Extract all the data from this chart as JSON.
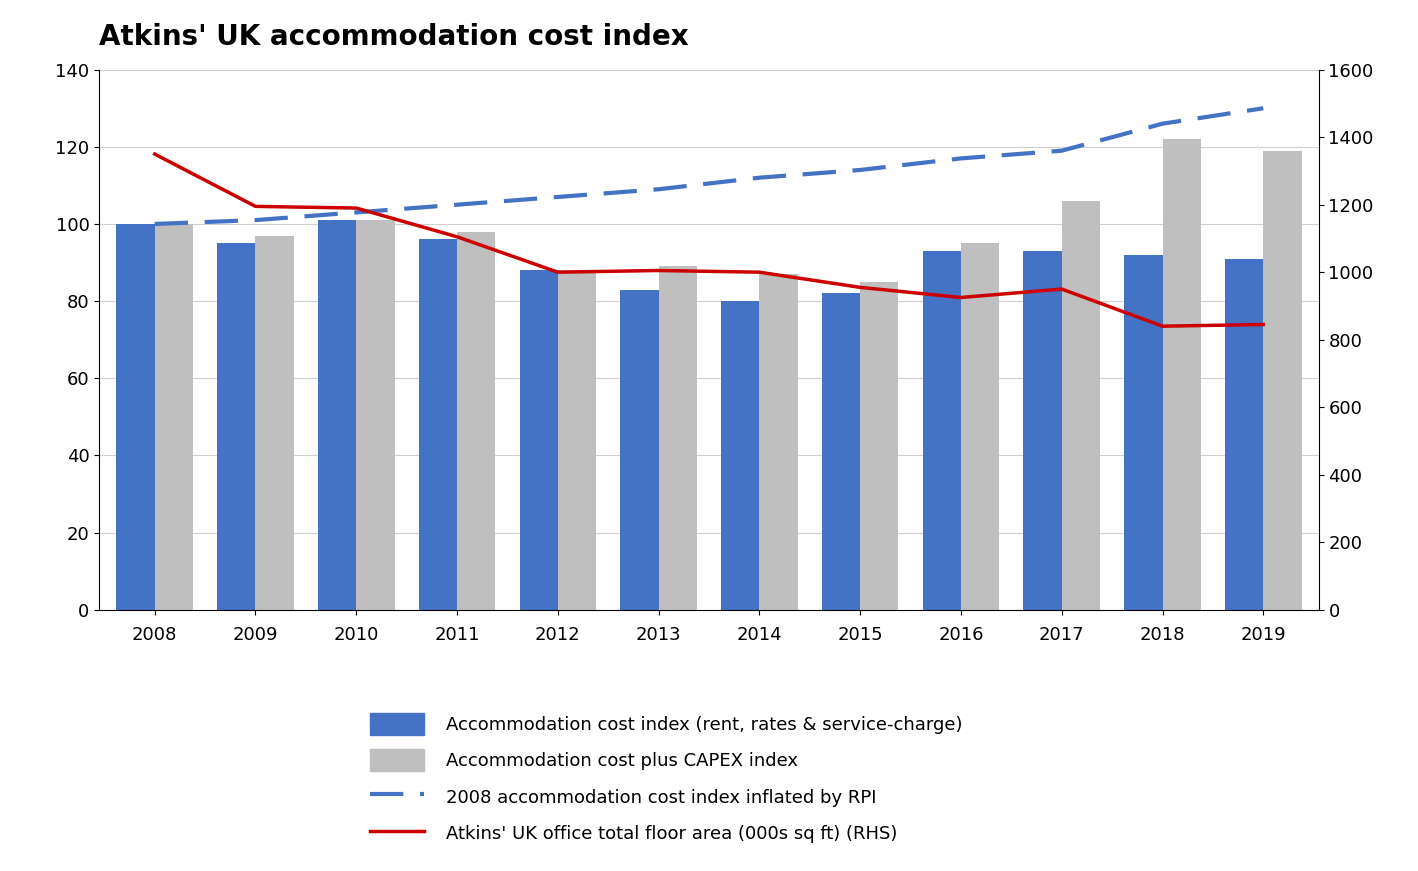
{
  "title": "Atkins' UK accommodation cost index",
  "years": [
    2008,
    2009,
    2010,
    2011,
    2012,
    2013,
    2014,
    2015,
    2016,
    2017,
    2018,
    2019
  ],
  "blue_bars": [
    100,
    95,
    101,
    96,
    88,
    83,
    80,
    82,
    93,
    93,
    92,
    91
  ],
  "grey_bars": [
    100,
    97,
    101,
    98,
    88,
    89,
    87,
    85,
    95,
    106,
    122,
    119
  ],
  "dashed_line": [
    100,
    101,
    103,
    105,
    107,
    109,
    112,
    114,
    117,
    119,
    126,
    130
  ],
  "red_line_rhs": [
    1350,
    1195,
    1190,
    1105,
    1000,
    1005,
    1000,
    955,
    925,
    950,
    840,
    845
  ],
  "left_ylim": [
    0,
    140
  ],
  "right_ylim": [
    0,
    1600
  ],
  "left_yticks": [
    0,
    20,
    40,
    60,
    80,
    100,
    120,
    140
  ],
  "right_yticks": [
    0,
    200,
    400,
    600,
    800,
    1000,
    1200,
    1400,
    1600
  ],
  "blue_bar_color": "#4472C4",
  "grey_bar_color": "#BFBFBF",
  "dashed_line_color": "#4472C4",
  "red_line_color": "#CC0000",
  "legend_labels": [
    "Accommodation cost index (rent, rates & service-charge)",
    "Accommodation cost plus CAPEX index",
    "2008 accommodation cost index inflated by RPI",
    "Atkins' UK office total floor area (000s sq ft) (RHS)"
  ],
  "title_fontsize": 20,
  "tick_fontsize": 13,
  "legend_fontsize": 13,
  "bar_width": 0.38
}
